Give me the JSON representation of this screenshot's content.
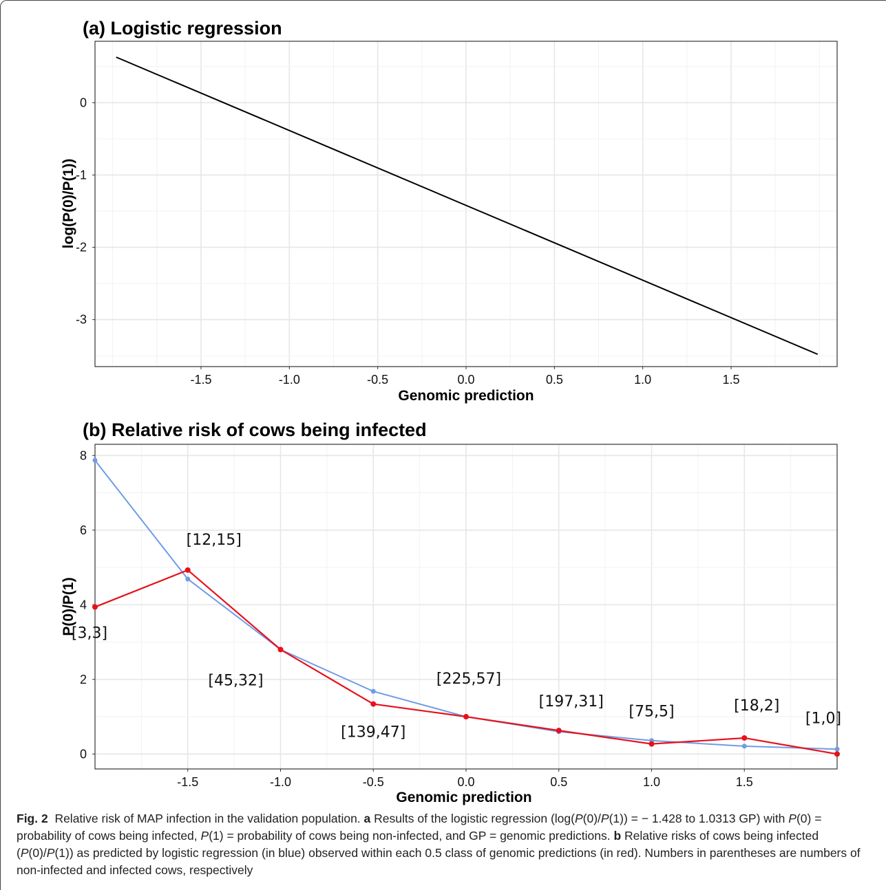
{
  "chart_data": [
    {
      "type": "line",
      "title": "(a) Logistic regression",
      "xlabel": "Genomic prediction",
      "ylabel": "log(P(0)/P(1))",
      "xlim": [
        -2.1,
        2.1
      ],
      "ylim": [
        -3.65,
        0.85
      ],
      "x_ticks": [
        "-1.5",
        "-1.0",
        "-0.5",
        "0.0",
        "0.5",
        "1.0",
        "1.5"
      ],
      "y_ticks": [
        "0",
        "-1",
        "-2",
        "-3"
      ],
      "grid": true,
      "series": [
        {
          "color": "#000000",
          "x": [
            -1.98,
            1.99
          ],
          "y": [
            0.63,
            -3.48
          ]
        }
      ]
    },
    {
      "type": "line",
      "title": "(b) Relative risk of cows being infected",
      "xlabel": "Genomic prediction",
      "ylabel": "P(0)/P(1)",
      "xlim": [
        -2.0,
        2.0
      ],
      "ylim": [
        -0.4,
        8.3
      ],
      "x_ticks": [
        "-1.5",
        "-1.0",
        "-0.5",
        "0.0",
        "0.5",
        "1.0",
        "1.5"
      ],
      "y_ticks": [
        "0",
        "2",
        "4",
        "6",
        "8"
      ],
      "grid": true,
      "series": [
        {
          "color": "#6f9ce6",
          "x": [
            -2.0,
            -1.5,
            -1.0,
            -0.5,
            0.0,
            0.5,
            1.0,
            1.5,
            2.0
          ],
          "y": [
            7.87,
            4.69,
            2.8,
            1.68,
            1.0,
            0.6,
            0.36,
            0.21,
            0.13
          ]
        },
        {
          "color": "#e8101a",
          "x": [
            -2.0,
            -1.5,
            -1.0,
            -0.5,
            0.0,
            0.5,
            1.0,
            1.5,
            2.0
          ],
          "y": [
            3.94,
            4.93,
            2.8,
            1.34,
            1.0,
            0.63,
            0.27,
            0.43,
            0.0
          ]
        }
      ],
      "annotations": [
        "[3,3]",
        "[12,15]",
        "[45,32]",
        "[139,47]",
        "[225,57]",
        "[197,31]",
        "[75,5]",
        "[18,2]",
        "[1,0]"
      ]
    }
  ],
  "caption": {
    "fig_label": "Fig. 2",
    "p1": "Relative risk of MAP infection in the validation population.",
    "a_label": "a",
    "p2": "Results of the logistic regression (log(",
    "p3": "P",
    "p4": "(0)/",
    "p5": "P",
    "p6": "(1)) = − 1.428 to 1.0313 GP) with",
    "p7": "P",
    "p8": "(0) = probability of cows being infected,",
    "p9": "P",
    "p10": "(1) = probability of cows being non-infected, and GP = genomic predictions.",
    "b_label": "b",
    "p11": "Relative risks of cows being infected (",
    "p12": "P",
    "p13": "(0)/",
    "p14": "P",
    "p15": "(1)) as predicted by logistic regression (in blue) observed within each 0.5 class of genomic predictions (in red). Numbers in parentheses are numbers of non-infected and infected cows, respectively"
  }
}
